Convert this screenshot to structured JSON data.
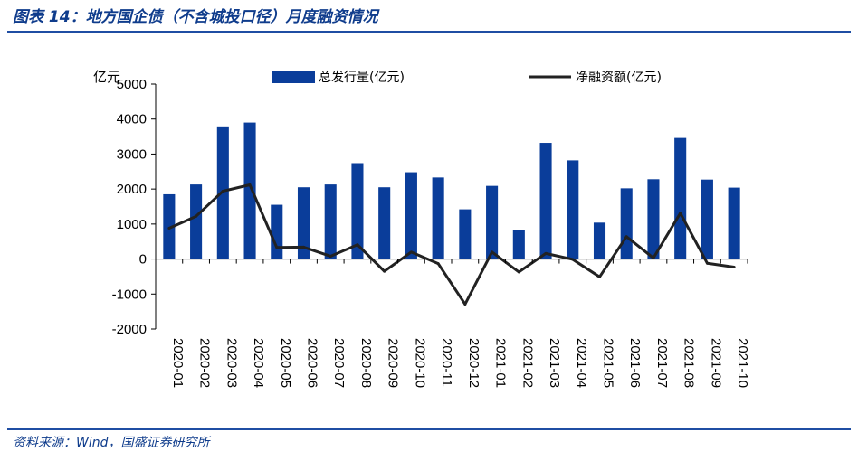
{
  "header": {
    "title": "图表 14：地方国企债（不含城投口径）月度融资情况"
  },
  "footer": {
    "source": "资料来源：Wind，国盛证券研究所"
  },
  "chart_data": {
    "type": "bar",
    "title": "图表 14：地方国企债（不含城投口径）月度融资情况",
    "ylabel": "亿元",
    "ylim": [
      -2000,
      5000
    ],
    "yticks": [
      5000,
      4000,
      3000,
      2000,
      1000,
      0,
      -1000,
      -2000
    ],
    "categories": [
      "2020-01",
      "2020-02",
      "2020-03",
      "2020-04",
      "2020-05",
      "2020-06",
      "2020-07",
      "2020-08",
      "2020-09",
      "2020-10",
      "2020-11",
      "2020-12",
      "2021-01",
      "2021-02",
      "2021-03",
      "2021-04",
      "2021-05",
      "2021-06",
      "2021-07",
      "2021-08",
      "2021-09",
      "2021-10"
    ],
    "series": [
      {
        "name": "总发行量(亿元)",
        "type": "bar",
        "color": "#0a3d9a",
        "values": [
          1850,
          2130,
          3790,
          3900,
          1550,
          2050,
          2130,
          2740,
          2050,
          2480,
          2330,
          1420,
          2090,
          820,
          3320,
          2820,
          1040,
          2020,
          2280,
          3460,
          2270,
          2040
        ]
      },
      {
        "name": "净融资额(亿元)",
        "type": "line",
        "color": "#222222",
        "values": [
          880,
          1220,
          1940,
          2120,
          330,
          340,
          80,
          410,
          -350,
          200,
          -130,
          -1290,
          200,
          -370,
          160,
          -10,
          -510,
          640,
          30,
          1310,
          -120,
          -230
        ]
      }
    ],
    "legend_position": "top",
    "grid": false
  }
}
